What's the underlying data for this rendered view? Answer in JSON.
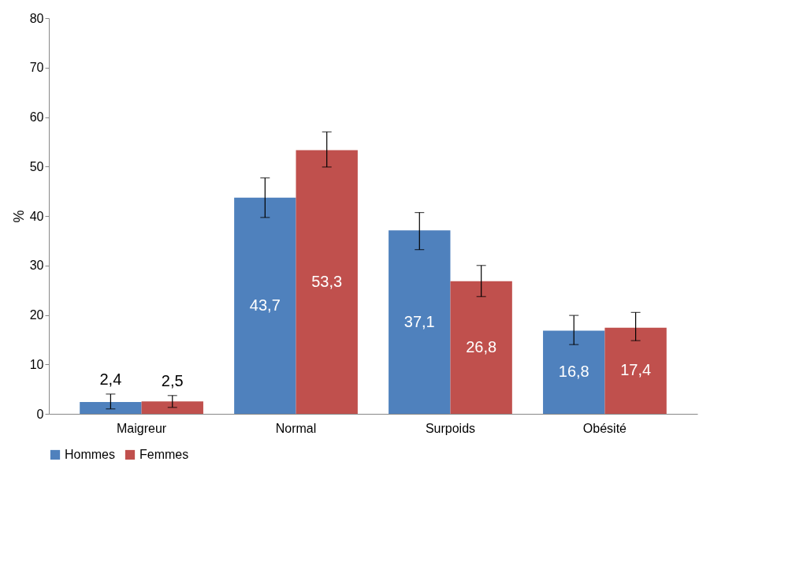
{
  "chart_data": {
    "type": "bar",
    "ylabel": "%",
    "categories": [
      "Maigreur",
      "Normal",
      "Surpoids",
      "Obésité"
    ],
    "series": [
      {
        "name": "Hommes",
        "color": "#4f81bd",
        "values": [
          2.4,
          43.7,
          37.1,
          16.8
        ],
        "value_labels": [
          "2,4",
          "43,7",
          "37,1",
          "16,8"
        ],
        "errors": [
          [
            1.0,
            4.0
          ],
          [
            39.7,
            47.7
          ],
          [
            33.2,
            40.7
          ],
          [
            14.0,
            19.9
          ]
        ]
      },
      {
        "name": "Femmes",
        "color": "#c0504d",
        "values": [
          2.5,
          53.3,
          26.8,
          17.4
        ],
        "value_labels": [
          "2,5",
          "53,3",
          "26,8",
          "17,4"
        ],
        "errors": [
          [
            1.3,
            3.7
          ],
          [
            49.9,
            57.0
          ],
          [
            23.7,
            30.0
          ],
          [
            14.8,
            20.5
          ]
        ]
      }
    ],
    "ylim": [
      0,
      80
    ],
    "yticks": [
      0,
      10,
      20,
      30,
      40,
      50,
      60,
      70,
      80
    ],
    "grid": false,
    "legend": "bottom"
  }
}
